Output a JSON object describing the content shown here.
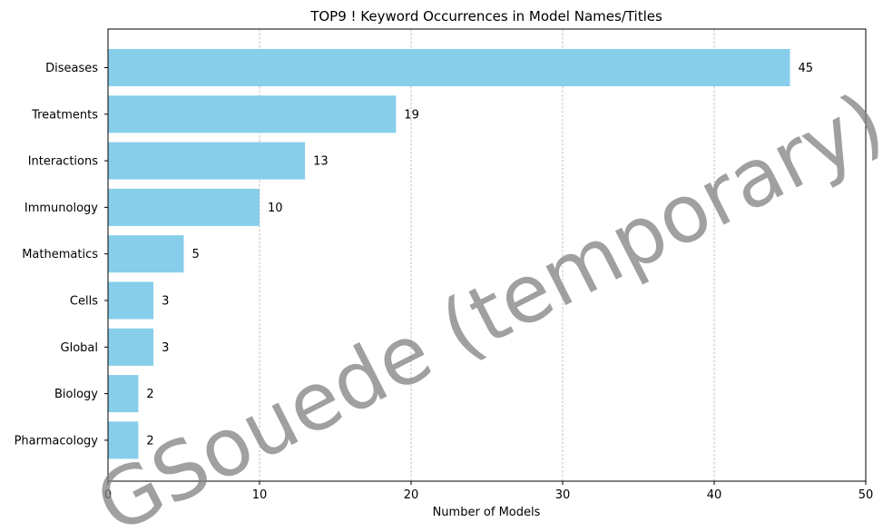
{
  "chart_data": {
    "type": "bar",
    "orientation": "horizontal",
    "title": "TOP9 ! Keyword Occurrences in Model Names/Titles",
    "xlabel": "Number of Models",
    "ylabel": "",
    "xlim": [
      0,
      50
    ],
    "xticks": [
      0,
      10,
      20,
      30,
      40,
      50
    ],
    "grid": "x-dashed",
    "bar_color": "#87CEEB",
    "categories": [
      "Diseases",
      "Treatments",
      "Interactions",
      "Immunology",
      "Mathematics",
      "Cells",
      "Global",
      "Biology",
      "Pharmacology"
    ],
    "values": [
      45,
      19,
      13,
      10,
      5,
      3,
      3,
      2,
      2
    ],
    "data_labels": [
      "45",
      "19",
      "13",
      "10",
      "5",
      "3",
      "3",
      "2",
      "2"
    ]
  },
  "watermark": {
    "text": "GSouede (temporary)",
    "color": "#808080"
  }
}
